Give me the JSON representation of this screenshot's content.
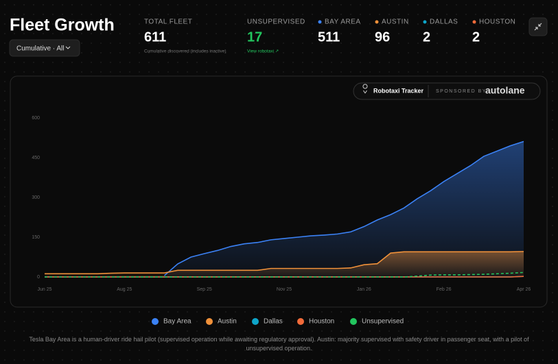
{
  "header": {
    "title": "Fleet Growth",
    "dropdown": "Cumulative · All"
  },
  "stats": [
    {
      "label": "TOTAL FLEET",
      "value": 611,
      "note": "Cumulative discovered (includes inactive)"
    },
    {
      "label": "UNSUPERVISED",
      "value": 17,
      "note": "View robotaxi ↗"
    },
    {
      "label": "BAY AREA",
      "value": 511,
      "color": "#3b82f6"
    },
    {
      "label": "AUSTIN",
      "value": 96,
      "color": "#f0913a"
    },
    {
      "label": "DALLAS",
      "value": 2,
      "color": "#0ea5c9"
    },
    {
      "label": "HOUSTON",
      "value": 2,
      "color": "#f26b3a"
    }
  ],
  "badge": {
    "tracker": "Robotaxi Tracker",
    "sponsored": "SPONSORED BY",
    "sponsor": "autolane"
  },
  "chart_data": {
    "type": "line",
    "categories": [
      "Jun 25",
      null,
      null,
      null,
      null,
      null,
      "Aug 25",
      null,
      null,
      null,
      null,
      null,
      "Sep 25",
      null,
      null,
      null,
      null,
      null,
      "Nov 25",
      null,
      null,
      null,
      null,
      null,
      "Jan 26",
      null,
      null,
      null,
      null,
      null,
      "Feb 26",
      null,
      null,
      null,
      null,
      null,
      "Apr 26"
    ],
    "series": [
      {
        "name": "Bay Area",
        "color": "#3b82f6",
        "fill": true,
        "values": [
          null,
          null,
          null,
          null,
          null,
          null,
          null,
          null,
          null,
          5,
          49,
          75,
          88,
          100,
          115,
          125,
          130,
          140,
          145,
          150,
          155,
          158,
          162,
          170,
          190,
          215,
          235,
          260,
          295,
          325,
          360,
          390,
          420,
          455,
          475,
          495,
          511
        ]
      },
      {
        "name": "Austin",
        "color": "#f0913a",
        "fill": true,
        "values": [
          12,
          12,
          12,
          12,
          12,
          14,
          15,
          15,
          15,
          15,
          25,
          25,
          25,
          25,
          25,
          25,
          25,
          32,
          32,
          32,
          32,
          32,
          32,
          34,
          46,
          50,
          90,
          95,
          95,
          95,
          95,
          95,
          95,
          95,
          95,
          95,
          96
        ]
      },
      {
        "name": "Dallas",
        "color": "#0ea5c9",
        "values": [
          0,
          0,
          0,
          0,
          0,
          0,
          0,
          0,
          0,
          0,
          0,
          0,
          0,
          0,
          0,
          0,
          0,
          0,
          0,
          0,
          0,
          0,
          0,
          0,
          0,
          0,
          0,
          0,
          0,
          0,
          0,
          0,
          0,
          0,
          0,
          0,
          2
        ]
      },
      {
        "name": "Houston",
        "color": "#f26b3a",
        "values": [
          0,
          0,
          0,
          0,
          0,
          0,
          0,
          0,
          0,
          0,
          0,
          0,
          0,
          0,
          0,
          0,
          0,
          0,
          0,
          0,
          0,
          0,
          0,
          0,
          0,
          0,
          0,
          0,
          0,
          0,
          0,
          0,
          0,
          0,
          0,
          0,
          2
        ]
      },
      {
        "name": "Unsupervised",
        "color": "#22c55e",
        "dashed": true,
        "values": [
          0,
          0,
          0,
          0,
          0,
          0,
          0,
          0,
          0,
          0,
          0,
          0,
          0,
          0,
          0,
          0,
          0,
          0,
          0,
          0,
          0,
          0,
          0,
          0,
          0,
          0,
          0,
          0,
          3,
          7,
          8,
          8,
          9,
          10,
          12,
          14,
          17
        ]
      }
    ],
    "ylim": [
      0,
      600
    ],
    "yticks": [
      0,
      150,
      300,
      450,
      600
    ],
    "grid": false
  },
  "footer": "Tesla Bay Area is a human-driver ride hail pilot (supervised operation while awaiting regulatory approval). Austin: majority supervised with safety driver in passenger seat, with a pilot of unsupervised operation."
}
